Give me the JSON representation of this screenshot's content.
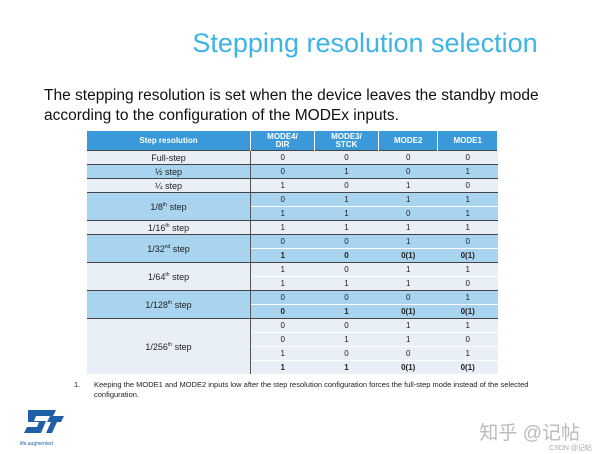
{
  "title": "Stepping resolution selection",
  "intro": "The stepping resolution is set when the device leaves the standby mode according to the configuration of the MODEx inputs.",
  "table": {
    "headers": [
      "Step resolution",
      "MODE4/\nDIR",
      "MODE3/\nSTCK",
      "MODE2",
      "MODE1"
    ],
    "groups": [
      {
        "label": "Full-step",
        "sup": "",
        "shade": "l",
        "rows": [
          [
            "0",
            "0",
            "0",
            "0"
          ]
        ]
      },
      {
        "label": "½ step",
        "sup": "",
        "shade": "b",
        "rows": [
          [
            "0",
            "1",
            "0",
            "1"
          ]
        ]
      },
      {
        "label": "¼ step",
        "sup": "",
        "shade": "l",
        "rows": [
          [
            "1",
            "0",
            "1",
            "0"
          ]
        ]
      },
      {
        "label": "1/8",
        "sup": "th",
        "suffix": " step",
        "shade": "b",
        "rows": [
          [
            "0",
            "1",
            "1",
            "1"
          ],
          [
            "1",
            "1",
            "0",
            "1"
          ]
        ]
      },
      {
        "label": "1/16",
        "sup": "th",
        "suffix": " step",
        "shade": "l",
        "rows": [
          [
            "1",
            "1",
            "1",
            "1"
          ]
        ]
      },
      {
        "label": "1/32",
        "sup": "nd",
        "suffix": " step",
        "shade": "b",
        "rows": [
          [
            "0",
            "0",
            "1",
            "0"
          ],
          [
            "1",
            "0",
            "0(1)",
            "0(1)"
          ]
        ],
        "bold_last": true
      },
      {
        "label": "1/64",
        "sup": "th",
        "suffix": " step",
        "shade": "l",
        "rows": [
          [
            "1",
            "0",
            "1",
            "1"
          ],
          [
            "1",
            "1",
            "1",
            "0"
          ]
        ]
      },
      {
        "label": "1/128",
        "sup": "th",
        "suffix": " step",
        "shade": "b",
        "rows": [
          [
            "0",
            "0",
            "0",
            "1"
          ],
          [
            "0",
            "1",
            "0(1)",
            "0(1)"
          ]
        ],
        "bold_last": true
      },
      {
        "label": "1/256",
        "sup": "th",
        "suffix": " step",
        "shade": "l",
        "rows": [
          [
            "0",
            "0",
            "1",
            "1"
          ],
          [
            "0",
            "1",
            "1",
            "0"
          ],
          [
            "1",
            "0",
            "0",
            "1"
          ],
          [
            "1",
            "1",
            "0(1)",
            "0(1)"
          ]
        ],
        "bold_last": true
      }
    ]
  },
  "footnote": {
    "number": "1.",
    "text": "Keeping the MODE1 and MODE2 inputs low after the step resolution configuration forces the full-step mode instead of the selected configuration."
  },
  "logo": {
    "text": "life.augmented",
    "color": "#1f5fa8"
  },
  "watermark": "知乎 @记帖",
  "csdn": "CSDN @记帖"
}
